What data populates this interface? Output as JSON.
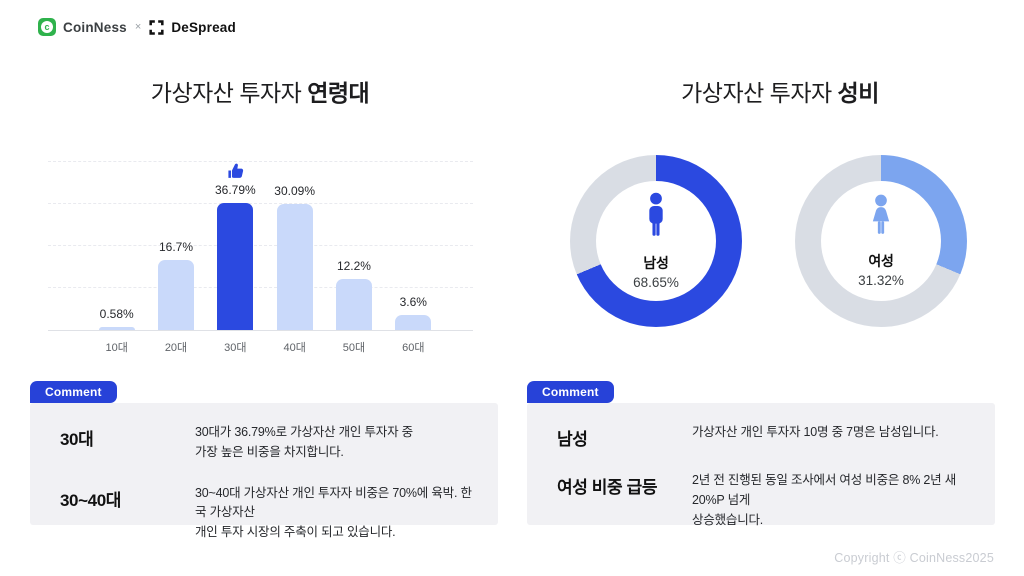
{
  "header": {
    "brand_left": "CoinNess",
    "separator": "×",
    "brand_right": "DeSpread"
  },
  "left_section": {
    "title_regular": "가상자산 투자자 ",
    "title_bold": "연령대"
  },
  "right_section": {
    "title_regular": "가상자산 투자자 ",
    "title_bold": "성비"
  },
  "chart_data": [
    {
      "type": "bar",
      "title": "가상자산 투자자 연령대",
      "categories": [
        "10대",
        "20대",
        "30대",
        "40대",
        "50대",
        "60대"
      ],
      "values": [
        0.58,
        16.7,
        36.79,
        30.09,
        12.2,
        3.6
      ],
      "value_labels": [
        "0.58%",
        "16.7%",
        "36.79%",
        "30.09%",
        "12.2%",
        "3.6%"
      ],
      "highlight_index": 2,
      "highlight_marker": "thumbs-up",
      "ylim": [
        0,
        40
      ],
      "grid_step": 10,
      "grid_style": "dashed horizontal",
      "bar_color": "#c9d9fa",
      "highlight_color": "#2b49e0"
    },
    {
      "type": "donut",
      "title": "가상자산 투자자 성비",
      "label": "남성",
      "value": 68.65,
      "display": "68.65%",
      "color": "#2b49e0",
      "track_color": "#d9dde4"
    },
    {
      "type": "donut",
      "title": "가상자산 투자자 성비",
      "label": "여성",
      "value": 31.32,
      "display": "31.32%",
      "color": "#7ca5ef",
      "track_color": "#d9dde4"
    }
  ],
  "comments_left": {
    "badge": "Comment",
    "rows": [
      {
        "term": "30대",
        "desc": "30대가 36.79%로 가상자산 개인 투자자 중\n가장 높은 비중을 차지합니다."
      },
      {
        "term": "30~40대",
        "desc": "30~40대 가상자산 개인 투자자 비중은 70%에 육박. 한국 가상자산\n개인 투자 시장의 주축이 되고 있습니다."
      }
    ]
  },
  "comments_right": {
    "badge": "Comment",
    "rows": [
      {
        "term": "남성",
        "desc": "가상자산 개인 투자자 10명 중 7명은 남성입니다."
      },
      {
        "term": "여성 비중 급등",
        "desc": "2년 전 진행된 동일 조사에서 여성 비중은 8% 2년 새 20%P 넘게\n상승했습니다."
      }
    ]
  },
  "footer": {
    "copyright": "Copyright ⓒ CoinNess2025"
  }
}
